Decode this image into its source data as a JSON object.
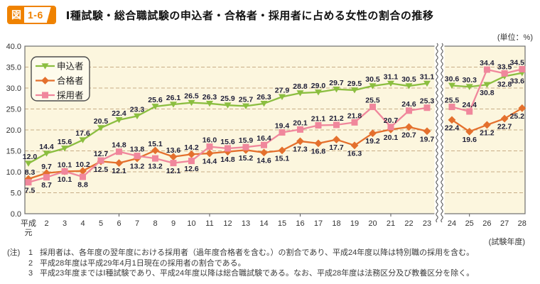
{
  "header": {
    "badge_prefix": "図",
    "badge_number": "1-6",
    "title": "Ⅰ種試験・総合職試験の申込者・合格者・採用者に占める女性の割合の推移"
  },
  "chart_data": {
    "type": "line",
    "title": "Ⅰ種試験・総合職試験の申込者・合格者・採用者に占める女性の割合の推移",
    "unit_label": "(単位：%)",
    "x_axis_note": "(試験年度)",
    "x_first_label_lines": [
      "平成",
      "元"
    ],
    "categories": [
      "平成元",
      "2",
      "3",
      "4",
      "5",
      "6",
      "7",
      "8",
      "9",
      "10",
      "11",
      "12",
      "13",
      "14",
      "15",
      "16",
      "17",
      "18",
      "19",
      "20",
      "21",
      "22",
      "23",
      "24",
      "25",
      "26",
      "27",
      "28"
    ],
    "break_after_index": 22,
    "ylim": [
      0,
      40
    ],
    "ytick_step": 5,
    "grid": "horizontal-dashed",
    "legend_position": "top-left",
    "series": [
      {
        "name": "申込者",
        "marker": "triangle-down",
        "color": "#8BBE40",
        "values": [
          12.0,
          14.4,
          15.6,
          17.6,
          20.5,
          22.4,
          23.3,
          25.6,
          26.1,
          26.5,
          26.3,
          25.9,
          25.7,
          26.3,
          27.9,
          28.8,
          29.0,
          29.7,
          29.5,
          30.5,
          31.1,
          30.5,
          31.1,
          30.6,
          30.3,
          30.8,
          32.8,
          33.6
        ]
      },
      {
        "name": "合格者",
        "marker": "diamond",
        "color": "#E4702D",
        "values": [
          8.3,
          9.7,
          10.1,
          10.2,
          12.5,
          12.1,
          13.2,
          15.1,
          13.6,
          14.2,
          14.4,
          14.8,
          15.2,
          14.6,
          15.1,
          17.3,
          16.8,
          17.7,
          16.3,
          19.2,
          20.1,
          20.7,
          19.7,
          22.4,
          19.6,
          21.2,
          22.7,
          25.2
        ]
      },
      {
        "name": "採用者",
        "marker": "square",
        "color": "#F0879C",
        "values": [
          7.5,
          8.7,
          10.1,
          8.8,
          12.7,
          14.8,
          13.8,
          13.2,
          12.1,
          12.6,
          16.0,
          15.6,
          15.9,
          16.4,
          19.4,
          20.1,
          21.1,
          21.2,
          21.8,
          25.5,
          20.7,
          24.6,
          25.3,
          25.5,
          24.4,
          34.4,
          33.5,
          34.5
        ]
      }
    ],
    "colors": {
      "plot_background": "#FCF6DE",
      "gridline": "#C8AD86",
      "plot_border": "#6E6E6E",
      "data_label": "#1F1F38",
      "axis_text": "#333333"
    }
  },
  "notes": {
    "prefix": "(注)",
    "items": [
      {
        "num": "1",
        "text": "採用者は、各年度の翌年度における採用者（過年度合格者を含む。）の割合であり、平成24年度以降は特別職の採用を含む。"
      },
      {
        "num": "2",
        "text": "平成28年度は平成29年4月1日現在の採用者の割合である。"
      },
      {
        "num": "3",
        "text": "平成23年度まではⅠ種試験であり、平成24年度以降は総合職試験である。なお、平成28年度は法務区分及び教養区分を除く。"
      }
    ]
  }
}
